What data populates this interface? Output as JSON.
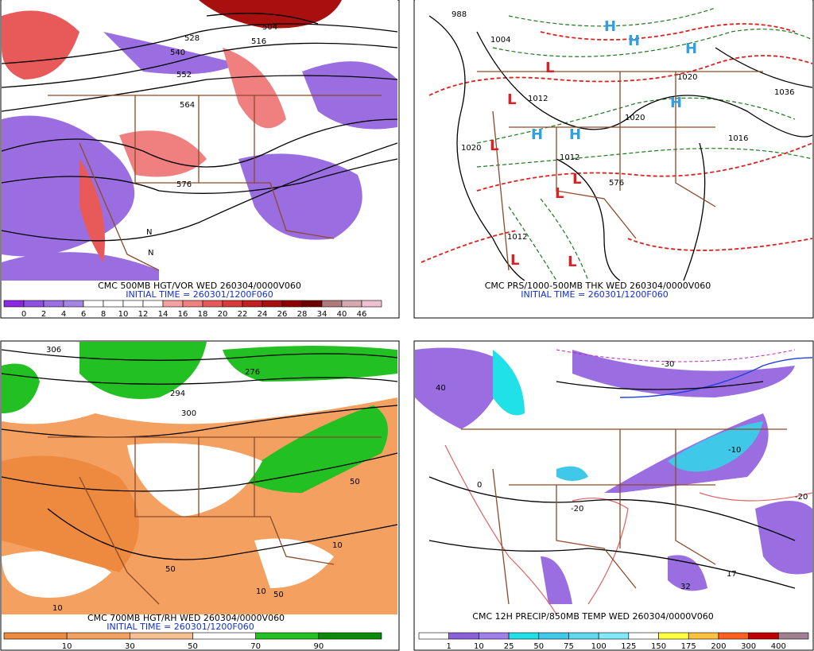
{
  "panels": [
    {
      "title": "CMC 500MB HGT/VOR WED 260304/0000V060",
      "init_time": "INITIAL TIME = 260301/1200F060",
      "map_labels": [
        "528",
        "516",
        "504",
        "540",
        "552",
        "564",
        "576",
        "N",
        "N"
      ],
      "colorbar": {
        "labels": [
          "0",
          "2",
          "4",
          "6",
          "8",
          "10",
          "12",
          "14",
          "16",
          "18",
          "20",
          "22",
          "24",
          "26",
          "28",
          "34",
          "40",
          "46"
        ],
        "colors": [
          "#8a2be2",
          "#9050e0",
          "#9c6ee0",
          "#a585e4",
          "#ffffff",
          "#ffffff",
          "#ffffff",
          "#ffffff",
          "#f7a0a0",
          "#f08080",
          "#e85a5a",
          "#d63a3a",
          "#c02020",
          "#a81010",
          "#8b0000",
          "#700000",
          "#b07a7a",
          "#d8a8b0",
          "#f0c0d0"
        ]
      }
    },
    {
      "title": "CMC PRS/1000-500MB THK WED 260304/0000V060",
      "init_time": "INITIAL TIME = 260301/1200F060",
      "map_labels": [
        "988",
        "1004",
        "1020",
        "1012",
        "1020",
        "1012",
        "1020",
        "1036",
        "1016",
        "1012",
        "576",
        "H",
        "H",
        "H",
        "H",
        "H",
        "H",
        "L",
        "L",
        "L",
        "L",
        "L",
        "L",
        "L"
      ]
    },
    {
      "title": "CMC 700MB HGT/RH WED 260304/0000V060",
      "init_time": "INITIAL TIME = 260301/1200F060",
      "map_labels": [
        "306",
        "300",
        "294",
        "276",
        "50",
        "10",
        "50",
        "10",
        "50",
        "10"
      ],
      "colorbar": {
        "labels": [
          "10",
          "30",
          "50",
          "70",
          "90"
        ],
        "colors": [
          "#ee8a40",
          "#f4a060",
          "#f8c090",
          "#ffffff",
          "#22c022",
          "#0a8a0a"
        ]
      }
    },
    {
      "title": "CMC 12H PRECIP/850MB TEMP WED 260304/0000V060",
      "map_labels": [
        "-30",
        "-10",
        "0",
        "-20",
        "-20",
        "17",
        "32",
        "40"
      ],
      "colorbar": {
        "labels": [
          "1",
          "10",
          "25",
          "50",
          "75",
          "100",
          "125",
          "150",
          "175",
          "200",
          "300",
          "400"
        ],
        "colors": [
          "#ffffff",
          "#8a60d8",
          "#a080e8",
          "#20e0e8",
          "#40c8e8",
          "#60d8f0",
          "#80e8f8",
          "#ffffff",
          "#ffff40",
          "#ffc040",
          "#ff6020",
          "#c00000",
          "#a08090"
        ]
      }
    }
  ]
}
